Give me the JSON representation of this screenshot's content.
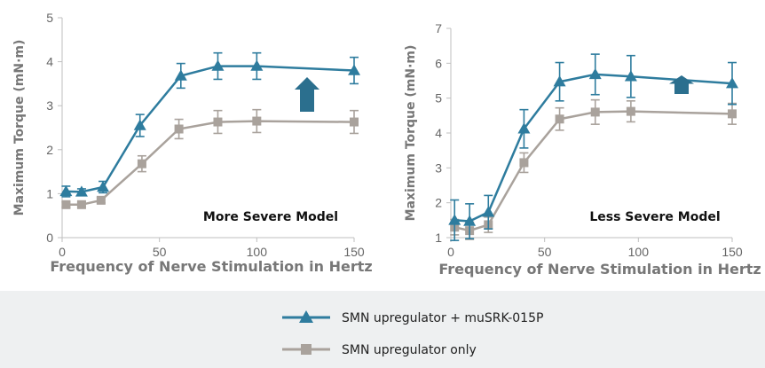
{
  "chart_data": [
    {
      "type": "line",
      "title": "",
      "annotation": "More Severe Model",
      "xlabel": "Frequency of Nerve Stimulation in Hertz",
      "ylabel": "Maximum Torque (mN·m)",
      "xlim": [
        0,
        150
      ],
      "ylim": [
        0,
        5
      ],
      "xticks": [
        "0",
        "50",
        "100",
        "150"
      ],
      "yticks": [
        "0",
        "1",
        "2",
        "3",
        "4",
        "5"
      ],
      "arrow": "up",
      "series": [
        {
          "name": "SMN upregulator + muSRK-015P",
          "color": "#2e7c9e",
          "marker": "triangle",
          "x": [
            2,
            10,
            21,
            40,
            61,
            80,
            100,
            150
          ],
          "y": [
            1.05,
            1.04,
            1.15,
            2.55,
            3.68,
            3.9,
            3.9,
            3.8
          ],
          "error": [
            0.12,
            0.07,
            0.13,
            0.25,
            0.28,
            0.3,
            0.3,
            0.3
          ]
        },
        {
          "name": "SMN upregulator only",
          "color": "#a9a29c",
          "marker": "square",
          "x": [
            2,
            10,
            20,
            41,
            60,
            80,
            100,
            150
          ],
          "y": [
            0.75,
            0.75,
            0.85,
            1.68,
            2.47,
            2.63,
            2.65,
            2.63
          ],
          "error": [
            0.06,
            0.05,
            0.06,
            0.18,
            0.22,
            0.26,
            0.26,
            0.26
          ]
        }
      ]
    },
    {
      "type": "line",
      "title": "",
      "annotation": "Less Severe Model",
      "xlabel": "Frequency of Nerve Stimulation in Hertz",
      "ylabel": "Maximum Torque (mN·m)",
      "xlim": [
        0,
        150
      ],
      "ylim": [
        1,
        7
      ],
      "xticks": [
        "0",
        "50",
        "100",
        "150"
      ],
      "yticks": [
        "1",
        "2",
        "3",
        "4",
        "5",
        "6",
        "7"
      ],
      "arrow": "up",
      "series": [
        {
          "name": "SMN upregulator + muSRK-015P",
          "color": "#2e7c9e",
          "marker": "triangle",
          "x": [
            2,
            10,
            20,
            39,
            58,
            77,
            96,
            150
          ],
          "y": [
            1.5,
            1.47,
            1.73,
            4.12,
            5.47,
            5.68,
            5.62,
            5.42
          ],
          "error": [
            0.58,
            0.5,
            0.48,
            0.55,
            0.55,
            0.58,
            0.6,
            0.6
          ]
        },
        {
          "name": "SMN upregulator only",
          "color": "#a9a29c",
          "marker": "square",
          "x": [
            2,
            10,
            20,
            39,
            58,
            77,
            96,
            150
          ],
          "y": [
            1.3,
            1.2,
            1.37,
            3.15,
            4.4,
            4.6,
            4.62,
            4.55
          ],
          "error": [
            0.22,
            0.25,
            0.22,
            0.28,
            0.32,
            0.35,
            0.3,
            0.3
          ]
        }
      ]
    }
  ],
  "legend": [
    {
      "label": "SMN upregulator + muSRK-015P",
      "color": "#2e7c9e",
      "marker": "triangle"
    },
    {
      "label": "SMN upregulator only",
      "color": "#a9a29c",
      "marker": "square"
    }
  ]
}
